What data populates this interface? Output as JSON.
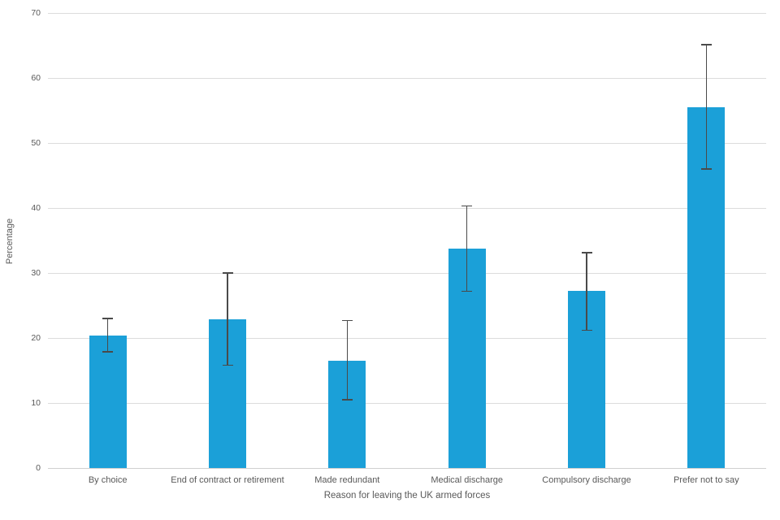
{
  "chart_data": {
    "type": "bar",
    "title": "",
    "categories": [
      "By choice",
      "End of contract or retirement",
      "Made redundant",
      "Medical discharge",
      "Compulsory discharge",
      "Prefer not to say"
    ],
    "series": [
      {
        "name": "Percentage",
        "values": [
          20.4,
          22.9,
          16.5,
          33.8,
          27.2,
          55.5
        ]
      }
    ],
    "error_low": [
      17.8,
      15.7,
      10.4,
      27.1,
      21.1,
      45.9
    ],
    "error_high": [
      23.1,
      30.1,
      22.8,
      40.4,
      33.2,
      65.2
    ],
    "xlabel": "Reason for leaving the UK armed forces",
    "ylabel": "Percentage",
    "ylim": [
      0,
      70
    ],
    "ytick_step": 10,
    "ytick_labels": [
      "0",
      "10",
      "20",
      "30",
      "40",
      "50",
      "60",
      "70"
    ],
    "grid": "horizontal",
    "legend": "none",
    "bar_color": "#1BA0D8",
    "error_bar_color": "#4a4a4a",
    "gridline_color": "#dcdcdc",
    "baseline_color": "#cfcfcf",
    "text_color": "#595959"
  }
}
